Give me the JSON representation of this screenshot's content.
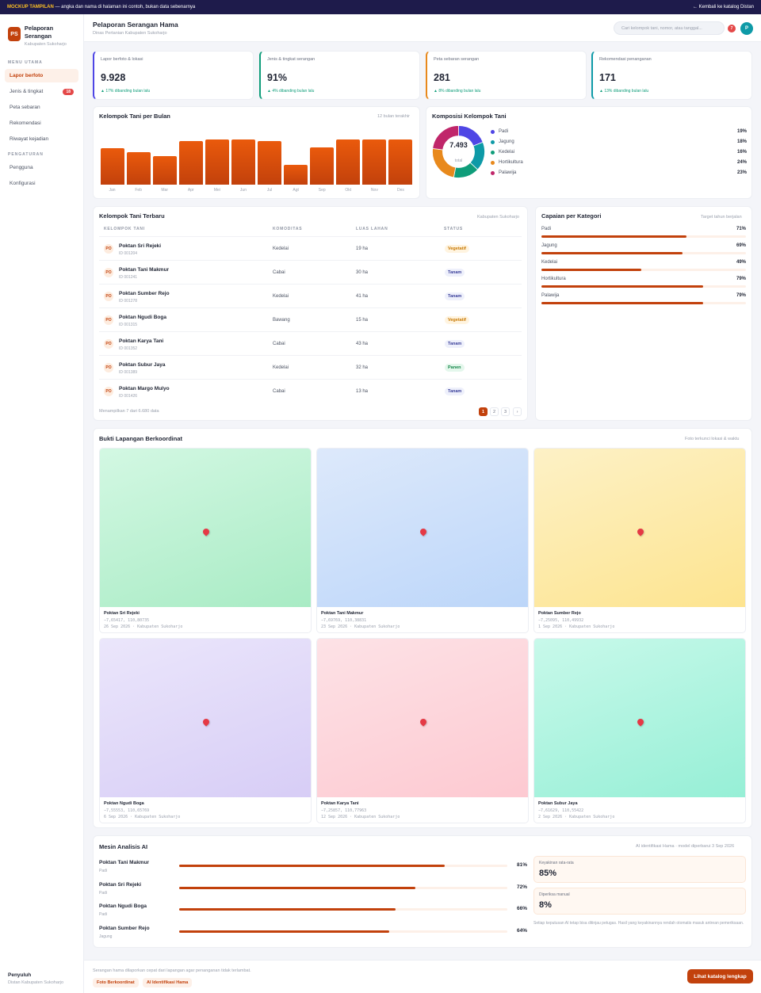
{
  "banner": {
    "label": "MOCKUP TAMPILAN",
    "text": " — angka dan nama di halaman ini contoh, bukan data sebenarnya",
    "back": "← Kembali ke katalog Distan"
  },
  "brand": {
    "initials": "PS",
    "name": "Pelaporan Serangan",
    "subtitle": "Kabupaten Sukoharjo"
  },
  "sidebar": {
    "section_main": "MENU UTAMA",
    "main_items": [
      {
        "label": "Lapor berfoto",
        "active": true
      },
      {
        "label": "Jenis & tingkat",
        "badge": "18"
      },
      {
        "label": "Peta sebaran"
      },
      {
        "label": "Rekomendasi"
      },
      {
        "label": "Riwayat kejadian"
      }
    ],
    "section_settings": "PENGATURAN",
    "settings_items": [
      {
        "label": "Pengguna"
      },
      {
        "label": "Konfigurasi"
      }
    ],
    "footer_role": "Penyuluh",
    "footer_org": "Distan Kabupaten Sukoharjo"
  },
  "header": {
    "title": "Pelaporan Serangan Hama",
    "subtitle": "Dinas Pertanian Kabupaten Sukoharjo",
    "search_placeholder": "Cari kelompok tani, nomor, atau tanggal...",
    "notif_count": "7",
    "avatar": "P"
  },
  "kpis": [
    {
      "label": "Lapor berfoto & lokasi",
      "value": "9.928",
      "delta": "▲ 17% dibanding bulan lalu",
      "color": "#4f46e5"
    },
    {
      "label": "Jenis & tingkat serangan",
      "value": "91%",
      "delta": "▲ 4% dibanding bulan lalu",
      "color": "#0f9d7a"
    },
    {
      "label": "Peta sebaran serangan",
      "value": "281",
      "delta": "▲ 8% dibanding bulan lalu",
      "color": "#e8891c"
    },
    {
      "label": "Rekomendasi penanganan",
      "value": "171",
      "delta": "▲ 13% dibanding bulan lalu",
      "color": "#0e9aa7"
    }
  ],
  "monthly": {
    "title": "Kelompok Tani per Bulan",
    "note": "12 bulan terakhir"
  },
  "composition": {
    "title": "Komposisi Kelompok Tani",
    "total": "7.493",
    "total_label": "total"
  },
  "table": {
    "title": "Kelompok Tani Terbaru",
    "note": "Kabupaten Sukoharjo",
    "headers": [
      "KELOMPOK TANI",
      "KOMODITAS",
      "LUAS LAHAN",
      "STATUS"
    ],
    "rows": [
      {
        "ini": "PO",
        "name": "Poktan Sri Rejeki",
        "id": "ID 001204",
        "kom": "Kedelai",
        "luas": "19 ha",
        "status": "Vegetatif",
        "cls": "veg"
      },
      {
        "ini": "PO",
        "name": "Poktan Tani Makmur",
        "id": "ID 001241",
        "kom": "Cabai",
        "luas": "30 ha",
        "status": "Tanam",
        "cls": "tan"
      },
      {
        "ini": "PO",
        "name": "Poktan Sumber Rejo",
        "id": "ID 001278",
        "kom": "Kedelai",
        "luas": "41 ha",
        "status": "Tanam",
        "cls": "tan"
      },
      {
        "ini": "PO",
        "name": "Poktan Ngudi Boga",
        "id": "ID 001315",
        "kom": "Bawang",
        "luas": "15 ha",
        "status": "Vegetatif",
        "cls": "veg"
      },
      {
        "ini": "PO",
        "name": "Poktan Karya Tani",
        "id": "ID 001352",
        "kom": "Cabai",
        "luas": "43 ha",
        "status": "Tanam",
        "cls": "tan"
      },
      {
        "ini": "PO",
        "name": "Poktan Subur Jaya",
        "id": "ID 001389",
        "kom": "Kedelai",
        "luas": "32 ha",
        "status": "Panen",
        "cls": "pan"
      },
      {
        "ini": "PO",
        "name": "Poktan Margo Mulyo",
        "id": "ID 001426",
        "kom": "Cabai",
        "luas": "13 ha",
        "status": "Tanam",
        "cls": "tan"
      }
    ],
    "showing": "Menampilkan 7 dari 6.680 data",
    "pages": [
      "1",
      "2",
      "3",
      "›"
    ]
  },
  "capaian": {
    "title": "Capaian per Kategori",
    "note": "Target tahun berjalan",
    "items": [
      {
        "label": "Padi",
        "value": 71,
        "pct": "71%"
      },
      {
        "label": "Jagung",
        "value": 69,
        "pct": "69%"
      },
      {
        "label": "Kedelai",
        "value": 49,
        "pct": "49%"
      },
      {
        "label": "Hortikultura",
        "value": 79,
        "pct": "79%"
      },
      {
        "label": "Palawija",
        "value": 79,
        "pct": "79%"
      }
    ]
  },
  "photos": {
    "title": "Bukti Lapangan Berkoordinat",
    "note": "Foto terkunci lokasi & waktu",
    "items": [
      {
        "name": "Poktan Sri Rejeki",
        "coord": "−7,65417, 110,80735",
        "date": "26 Sep 2026 · Kabupaten Sukoharjo",
        "c1": "#d3f8e3",
        "c2": "#a8ebc4"
      },
      {
        "name": "Poktan Tani Makmur",
        "coord": "−7,69769, 110,38831",
        "date": "23 Sep 2026 · Kabupaten Sukoharjo",
        "c1": "#dde9fb",
        "c2": "#bcd6f9"
      },
      {
        "name": "Poktan Sumber Rejo",
        "coord": "−7,25095, 110,49932",
        "date": "1 Sep 2026 · Kabupaten Sukoharjo",
        "c1": "#fdf1c6",
        "c2": "#fde48f"
      },
      {
        "name": "Poktan Ngudi Boga",
        "coord": "−7,55553, 110,65769",
        "date": "6 Sep 2026 · Kabupaten Sukoharjo",
        "c1": "#ebe6fb",
        "c2": "#d7cdf6"
      },
      {
        "name": "Poktan Karya Tani",
        "coord": "−7,25857, 110,77963",
        "date": "12 Sep 2026 · Kabupaten Sukoharjo",
        "c1": "#fde2e6",
        "c2": "#fdc9d1"
      },
      {
        "name": "Poktan Subur Jaya",
        "coord": "−7,61629, 110,55422",
        "date": "2 Sep 2026 · Kabupaten Sukoharjo",
        "c1": "#c8f9ea",
        "c2": "#96efd6"
      }
    ]
  },
  "ai": {
    "title": "Mesin Analisis AI",
    "note": "AI identifikasi Hama · model diperbarui 3 Sep 2026",
    "rows": [
      {
        "name": "Poktan Tani Makmur",
        "crop": "Padi",
        "value": 81,
        "pct": "81%"
      },
      {
        "name": "Poktan Sri Rejeki",
        "crop": "Padi",
        "value": 72,
        "pct": "72%"
      },
      {
        "name": "Poktan Ngudi Boga",
        "crop": "Padi",
        "value": 66,
        "pct": "66%"
      },
      {
        "name": "Poktan Sumber Rejo",
        "crop": "Jagung",
        "value": 64,
        "pct": "64%"
      }
    ],
    "avg_label": "Keyakinan rata-rata",
    "avg_value": "85%",
    "manual_label": "Diperiksa manual",
    "manual_value": "8%",
    "disclaimer": "Setiap keputusan AI tetap bisa ditinjau petugas. Hasil yang keyakinannya rendah otomatis masuk antrean pemeriksaan."
  },
  "footer": {
    "text": "Serangan hama dilaporkan cepat dari lapangan agar penanganan tidak terlambat.",
    "tags": [
      "Foto Berkoordinat",
      "AI Identifikasi Hama"
    ],
    "cta": "Lihat katalog lengkap"
  },
  "chart_data": [
    {
      "type": "bar",
      "categories": [
        "Jan",
        "Feb",
        "Mar",
        "Apr",
        "Mei",
        "Jun",
        "Jul",
        "Agt",
        "Sep",
        "Okt",
        "Nov",
        "Des"
      ],
      "values": [
        60,
        54,
        47,
        73,
        75,
        75,
        72,
        33,
        62,
        75,
        75,
        75
      ],
      "ylim": [
        0,
        100
      ]
    },
    {
      "type": "pie",
      "categories": [
        "Padi",
        "Jagung",
        "Kedelai",
        "Hortikultura",
        "Palawija"
      ],
      "values": [
        19,
        18,
        16,
        24,
        23
      ],
      "labels": [
        "19%",
        "18%",
        "16%",
        "24%",
        "23%"
      ],
      "colors": [
        "#4f46e5",
        "#0e9aa7",
        "#0f9d7a",
        "#e8891c",
        "#c0266a"
      ],
      "legend": "right"
    }
  ]
}
